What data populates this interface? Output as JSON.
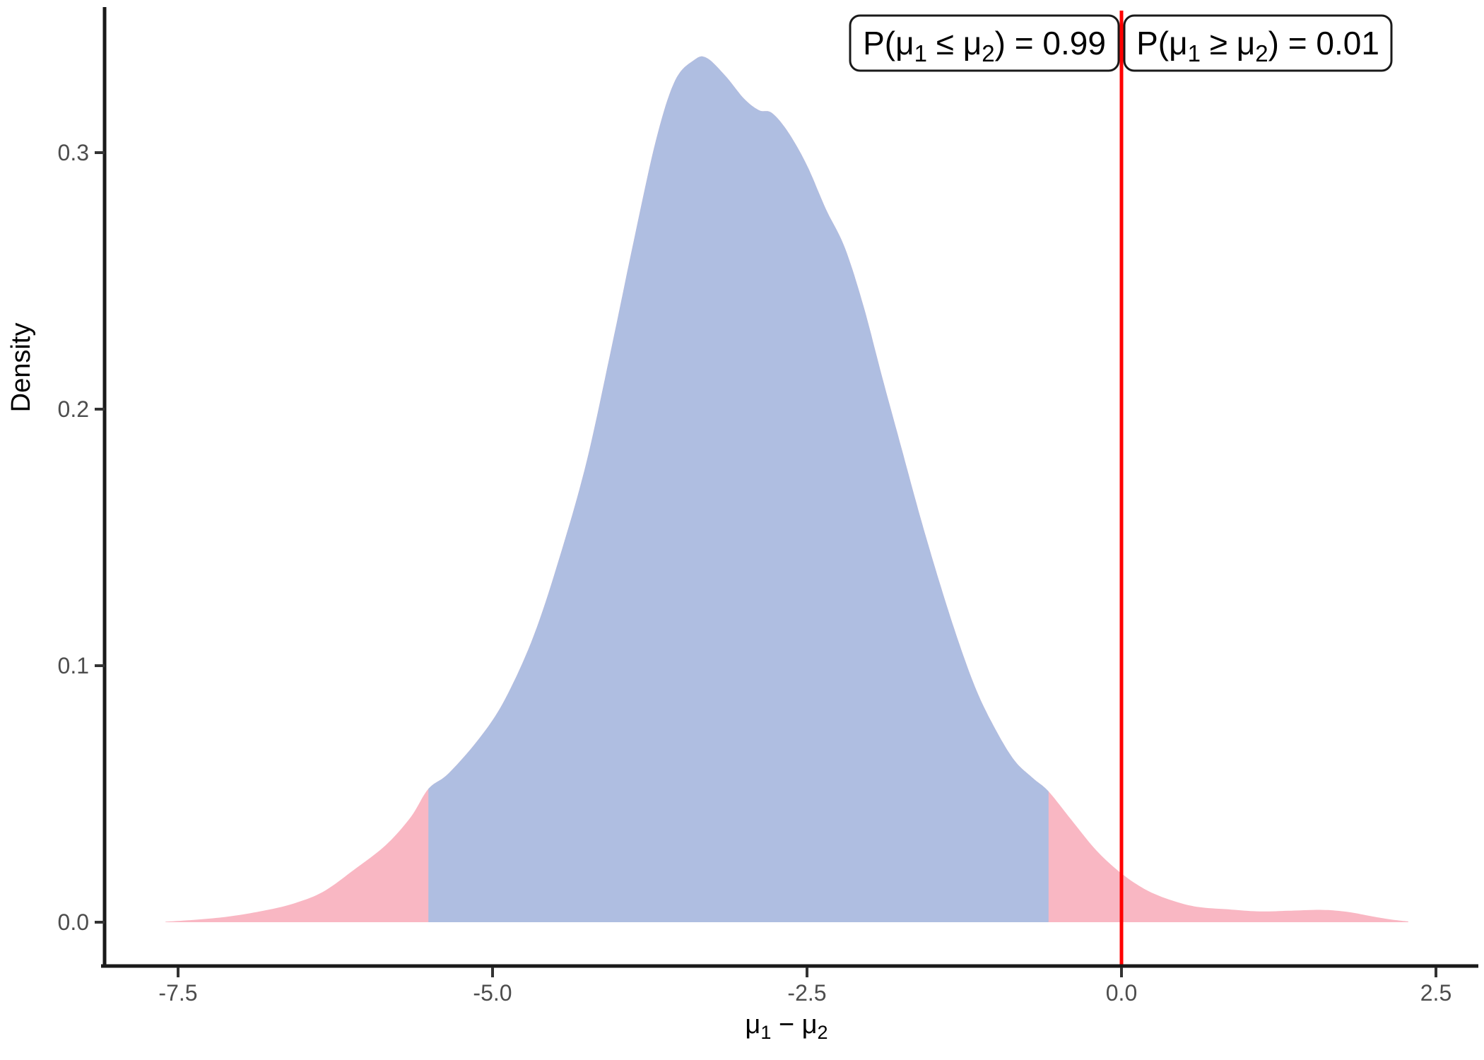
{
  "chart_data": {
    "type": "area",
    "subtype": "posterior-density",
    "title": "",
    "xlabel": "μ_1 − μ_2",
    "ylabel": "Density",
    "x_ticks": [
      -7.5,
      -5.0,
      -2.5,
      0.0,
      2.5
    ],
    "x_tick_labels": [
      "-7.5",
      "-5.0",
      "-2.5",
      "0.0",
      "2.5"
    ],
    "y_ticks": [
      0.0,
      0.1,
      0.2,
      0.3
    ],
    "y_tick_labels": [
      "0.0",
      "0.1",
      "0.2",
      "0.3"
    ],
    "xlim": [
      -8.1,
      2.85
    ],
    "ylim": [
      0,
      0.345
    ],
    "grid": "off",
    "legend": "none",
    "vline_x": 0.0,
    "hdi_interval": [
      -5.51,
      -0.58
    ],
    "peak": {
      "x": -3.3,
      "density": 0.337
    },
    "density": [
      [
        -7.6,
        0.0002
      ],
      [
        -7.35,
        0.001
      ],
      [
        -7.1,
        0.0022
      ],
      [
        -6.85,
        0.0042
      ],
      [
        -6.6,
        0.007
      ],
      [
        -6.35,
        0.0118
      ],
      [
        -6.1,
        0.0205
      ],
      [
        -5.85,
        0.03
      ],
      [
        -5.65,
        0.041
      ],
      [
        -5.51,
        0.052
      ],
      [
        -5.35,
        0.058
      ],
      [
        -5.1,
        0.072
      ],
      [
        -4.9,
        0.087
      ],
      [
        -4.67,
        0.112
      ],
      [
        -4.45,
        0.145
      ],
      [
        -4.25,
        0.18
      ],
      [
        -4.05,
        0.225
      ],
      [
        -3.88,
        0.265
      ],
      [
        -3.7,
        0.305
      ],
      [
        -3.55,
        0.328
      ],
      [
        -3.4,
        0.336
      ],
      [
        -3.3,
        0.337
      ],
      [
        -3.15,
        0.33
      ],
      [
        -3.0,
        0.321
      ],
      [
        -2.88,
        0.3165
      ],
      [
        -2.78,
        0.3155
      ],
      [
        -2.65,
        0.308
      ],
      [
        -2.5,
        0.295
      ],
      [
        -2.35,
        0.278
      ],
      [
        -2.2,
        0.263
      ],
      [
        -2.05,
        0.24
      ],
      [
        -1.9,
        0.212
      ],
      [
        -1.75,
        0.185
      ],
      [
        -1.6,
        0.158
      ],
      [
        -1.45,
        0.133
      ],
      [
        -1.3,
        0.11
      ],
      [
        -1.15,
        0.09
      ],
      [
        -1.0,
        0.075
      ],
      [
        -0.85,
        0.063
      ],
      [
        -0.7,
        0.056
      ],
      [
        -0.58,
        0.051
      ],
      [
        -0.4,
        0.04
      ],
      [
        -0.2,
        0.028
      ],
      [
        0.0,
        0.019
      ],
      [
        0.2,
        0.0125
      ],
      [
        0.4,
        0.0085
      ],
      [
        0.6,
        0.006
      ],
      [
        0.85,
        0.005
      ],
      [
        1.1,
        0.0042
      ],
      [
        1.35,
        0.0045
      ],
      [
        1.6,
        0.0048
      ],
      [
        1.8,
        0.004
      ],
      [
        2.0,
        0.0022
      ],
      [
        2.15,
        0.001
      ],
      [
        2.28,
        0.0003
      ]
    ],
    "annotations": [
      {
        "text": "P(μ_1 ≤ μ_2) = 0.99",
        "probability": 0.99,
        "side": "left_of_vline"
      },
      {
        "text": "P(μ_1 ≥ μ_2) = 0.01",
        "probability": 0.01,
        "side": "right_of_vline"
      }
    ],
    "colors": {
      "hdi_fill": "#AFBEE1",
      "tail_fill": "#F9B7C3",
      "vline": "#FF0000",
      "axis_line": "#1A1A1A",
      "tick_mark": "#333333",
      "tick_label": "#4D4D4D",
      "axis_title": "#000000",
      "label_box_fill": "#FFFFFF",
      "label_box_border": "#1A1A1A",
      "background": "#FFFFFF"
    }
  }
}
